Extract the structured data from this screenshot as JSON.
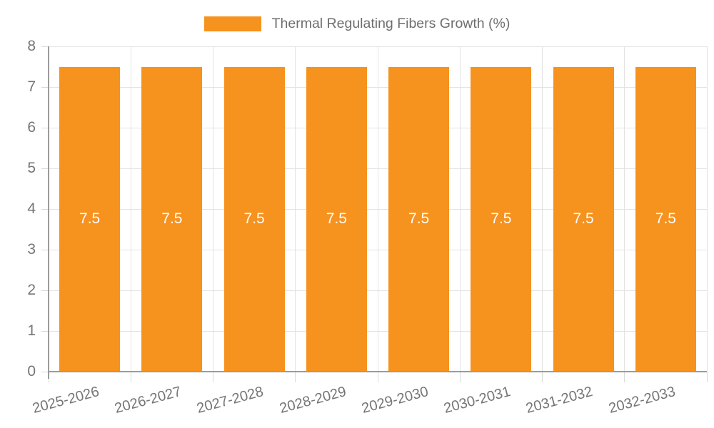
{
  "legend": {
    "label": "Thermal Regulating Fibers Growth (%)"
  },
  "chart_data": {
    "type": "bar",
    "title": "Thermal Regulating Fibers Growth (%)",
    "categories": [
      "2025-2026",
      "2026-2027",
      "2027-2028",
      "2028-2029",
      "2029-2030",
      "2030-2031",
      "2031-2032",
      "2032-2033"
    ],
    "series": [
      {
        "name": "Thermal Regulating Fibers Growth (%)",
        "values": [
          7.5,
          7.5,
          7.5,
          7.5,
          7.5,
          7.5,
          7.5,
          7.5
        ],
        "bar_labels": [
          "7.5",
          "7.5",
          "7.5",
          "7.5",
          "7.5",
          "7.5",
          "7.5",
          "7.5"
        ]
      }
    ],
    "xlabel": "",
    "ylabel": "",
    "ylim": [
      0,
      8
    ],
    "yticks": [
      "0",
      "1",
      "2",
      "3",
      "4",
      "5",
      "6",
      "7",
      "8"
    ],
    "grid": true,
    "legend_position": "top-center",
    "colors": {
      "bar": "#F6921E",
      "bar_label": "#FFFFFF",
      "axis": "#9B9B9B",
      "grid": "#E3E3E3",
      "tick": "#D9D9D9",
      "axis_text": "#757575",
      "legend_text": "#6E6E6E"
    }
  }
}
